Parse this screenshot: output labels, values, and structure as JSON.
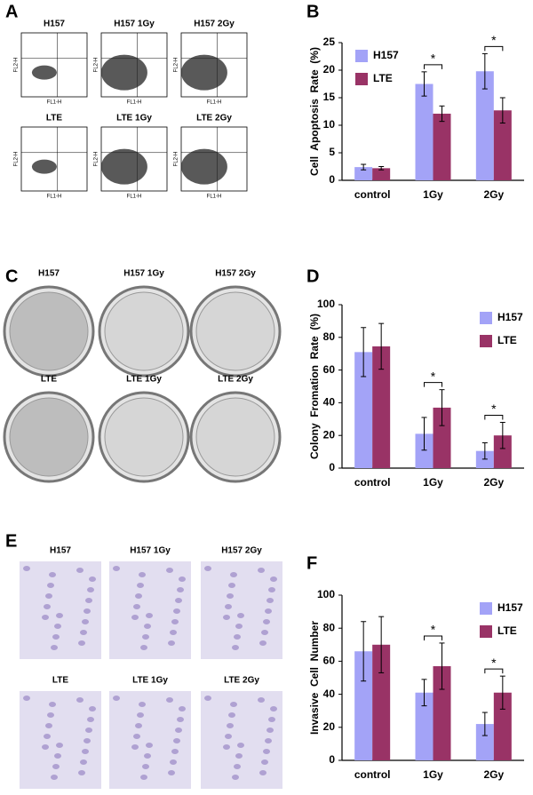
{
  "panel_letters": [
    "A",
    "B",
    "C",
    "D",
    "E",
    "F"
  ],
  "flow_panel": {
    "labels": [
      "H157",
      "H157 1Gy",
      "H157 2Gy",
      "LTE",
      "LTE 1Gy",
      "LTE 2Gy"
    ],
    "x_axis_label": "FL1-H",
    "y_axis_label": "FL2-H"
  },
  "colony_panel": {
    "labels": [
      "H157",
      "H157 1Gy",
      "H157 2Gy",
      "LTE",
      "LTE 1Gy",
      "LTE 2Gy"
    ]
  },
  "invasion_panel": {
    "labels": [
      "H157",
      "H157 1Gy",
      "H157 2Gy",
      "LTE",
      "LTE 1Gy",
      "LTE 2Gy"
    ]
  },
  "chart_data": [
    {
      "type": "bar",
      "y_label": "Cell  Apoptosis  Rate  (%)",
      "categories": [
        "control",
        "1Gy",
        "2Gy"
      ],
      "series": [
        {
          "name": "H157",
          "color": "#a3a3f7",
          "values": [
            2.4,
            17.5,
            19.8
          ],
          "errors": [
            0.5,
            2.2,
            3.2
          ]
        },
        {
          "name": "LTE",
          "color": "#993366",
          "values": [
            2.2,
            12.1,
            12.7
          ],
          "errors": [
            0.3,
            1.4,
            2.3
          ]
        }
      ],
      "significance": [
        null,
        "*",
        "*"
      ],
      "ylim": [
        0,
        25
      ],
      "yticks": [
        0,
        5,
        10,
        15,
        20,
        25
      ],
      "legend": "upper left"
    },
    {
      "type": "bar",
      "y_label": "Colony  Fromation  Rate  (%)",
      "categories": [
        "control",
        "1Gy",
        "2Gy"
      ],
      "series": [
        {
          "name": "H157",
          "color": "#a3a3f7",
          "values": [
            71,
            21,
            10.5
          ],
          "errors": [
            15,
            10,
            5
          ]
        },
        {
          "name": "LTE",
          "color": "#993366",
          "values": [
            74.5,
            37,
            20
          ],
          "errors": [
            14,
            11,
            8
          ]
        }
      ],
      "significance": [
        null,
        "*",
        "*"
      ],
      "ylim": [
        0,
        100
      ],
      "yticks": [
        0,
        20,
        40,
        60,
        80,
        100
      ],
      "legend": "upper right"
    },
    {
      "type": "bar",
      "y_label": "Invasive  Cell  Number",
      "categories": [
        "control",
        "1Gy",
        "2Gy"
      ],
      "series": [
        {
          "name": "H157",
          "color": "#a3a3f7",
          "values": [
            66,
            41,
            22
          ],
          "errors": [
            18,
            8,
            7
          ]
        },
        {
          "name": "LTE",
          "color": "#993366",
          "values": [
            70,
            57,
            41
          ],
          "errors": [
            17,
            14,
            10
          ]
        }
      ],
      "significance": [
        null,
        "*",
        "*"
      ],
      "ylim": [
        0,
        100
      ],
      "yticks": [
        0,
        20,
        40,
        60,
        80,
        100
      ],
      "legend": "upper right"
    }
  ]
}
